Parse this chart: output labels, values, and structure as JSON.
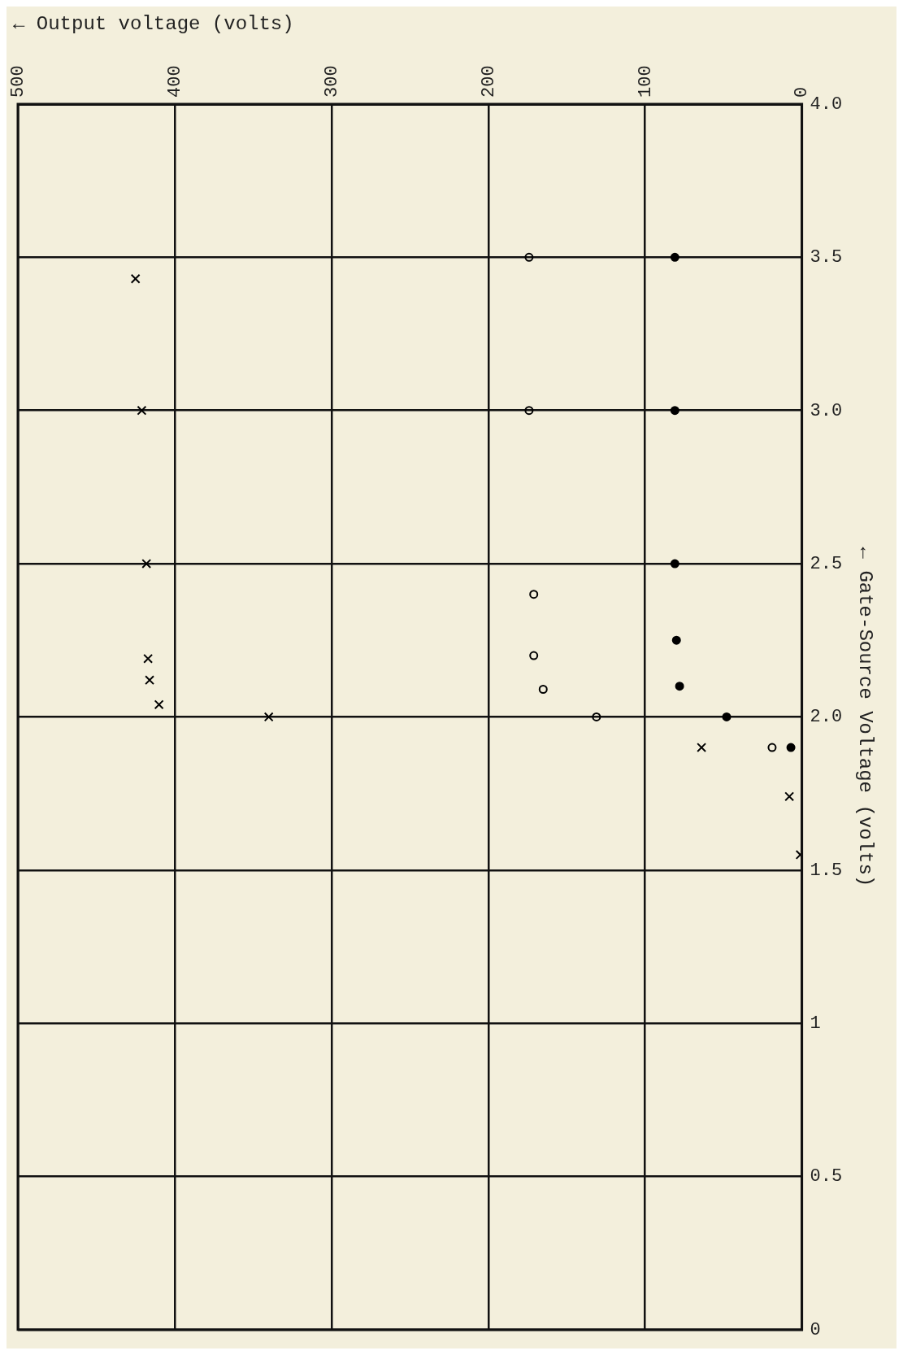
{
  "chart_data": {
    "type": "scatter",
    "xlabel": "← Output voltage (volts)",
    "ylabel": "← Gate-Source Voltage (volts)",
    "xlim": [
      500,
      0
    ],
    "xticks": [
      500,
      400,
      300,
      200,
      100,
      0
    ],
    "ylim": [
      0,
      4
    ],
    "yticks": [
      0,
      0.5,
      1,
      1.5,
      {
        "value": 2,
        "label": "2.0"
      },
      {
        "value": 2.5,
        "label": "2.5"
      },
      {
        "value": 3,
        "label": "3.0"
      },
      {
        "value": 3.5,
        "label": "3.5"
      },
      {
        "value": 4,
        "label": "4.0"
      }
    ],
    "grid": true,
    "legend": false,
    "series": [
      {
        "color": "#000000",
        "marker": "cross",
        "x": [
          425,
          421,
          418,
          417,
          416,
          410,
          340,
          64,
          8,
          1
        ],
        "values": [
          3.43,
          3.0,
          2.5,
          2.19,
          2.12,
          2.04,
          2.0,
          1.9,
          1.74,
          1.55
        ]
      },
      {
        "color": "#000000",
        "marker": "circle",
        "x": [
          174,
          174,
          171,
          171,
          165,
          131,
          19
        ],
        "values": [
          3.5,
          3.0,
          2.4,
          2.2,
          2.09,
          2.0,
          1.9
        ]
      },
      {
        "color": "#000000",
        "marker": "circle",
        "x": [
          81,
          81,
          81,
          80,
          78,
          48,
          7
        ],
        "values": [
          3.5,
          3.0,
          2.5,
          2.25,
          2.1,
          2.0,
          1.9
        ]
      }
    ]
  }
}
